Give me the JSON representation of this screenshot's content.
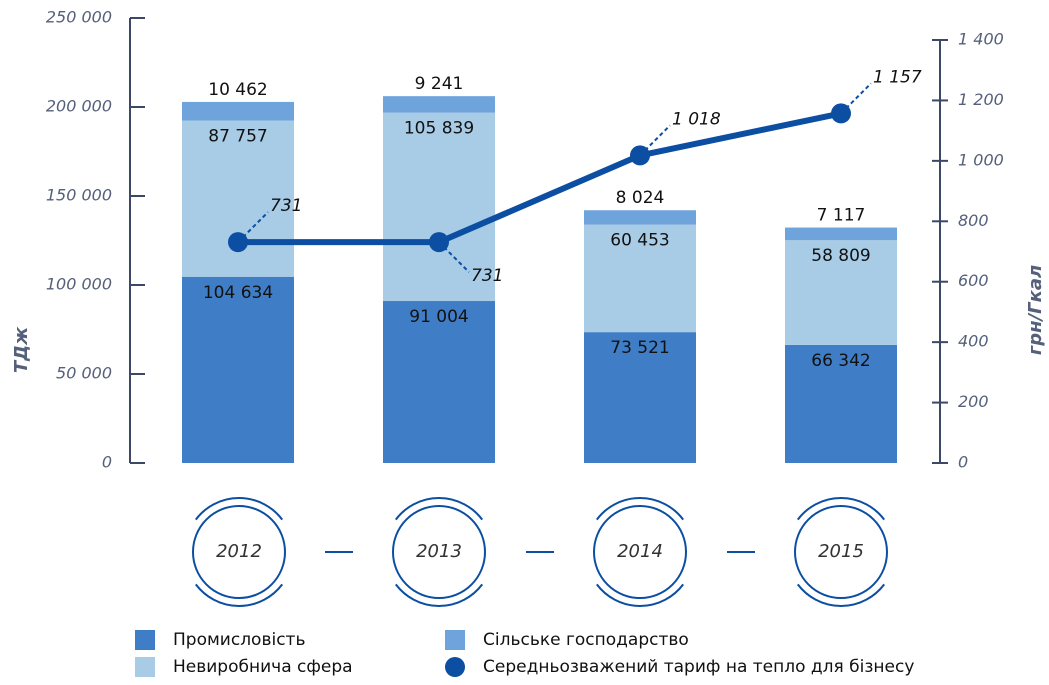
{
  "chart_data": {
    "type": "bar",
    "stacked": true,
    "categories": [
      "2012",
      "2013",
      "2014",
      "2015"
    ],
    "series": [
      {
        "name": "Промисловість",
        "color": "#3f7ec6",
        "values": [
          104634,
          91004,
          73521,
          66342
        ],
        "value_labels": [
          "104 634",
          "91 004",
          "73 521",
          "66 342"
        ]
      },
      {
        "name": "Невиробнича сфера",
        "color": "#a8cbe6",
        "values": [
          87757,
          105839,
          60453,
          58809
        ],
        "value_labels": [
          "87 757",
          "105 839",
          "60 453",
          "58 809"
        ]
      },
      {
        "name": "Сільське господарство",
        "color": "#6ea3db",
        "values": [
          10462,
          9241,
          8024,
          7117
        ],
        "value_labels": [
          "10 462",
          "9 241",
          "8 024",
          "7 117"
        ]
      },
      {
        "name": "Середньозважений тариф на тепло для бізнесу",
        "type": "line",
        "axis": "y2",
        "color": "#0b4ea2",
        "values": [
          731,
          731,
          1018,
          1157
        ],
        "value_labels": [
          "731",
          "731",
          "1 018",
          "1 157"
        ]
      }
    ],
    "ylabel": "ТДж",
    "y2label": "грн/Гкал",
    "ylim": [
      0,
      250000
    ],
    "yticks": [
      0,
      {
        "value": 50000,
        "label": "50 000"
      },
      {
        "value": 100000,
        "label": "100 000"
      },
      {
        "value": 150000,
        "label": "150 000"
      },
      {
        "value": 200000,
        "label": "200 000"
      },
      {
        "value": 250000,
        "label": "250 000"
      }
    ],
    "y2lim": [
      0,
      1400
    ],
    "y2ticks": [
      0,
      200,
      400,
      600,
      800,
      {
        "value": 1000,
        "label": "1 000"
      },
      {
        "value": 1200,
        "label": "1 200"
      },
      {
        "value": 1400,
        "label": "1 400"
      }
    ]
  }
}
